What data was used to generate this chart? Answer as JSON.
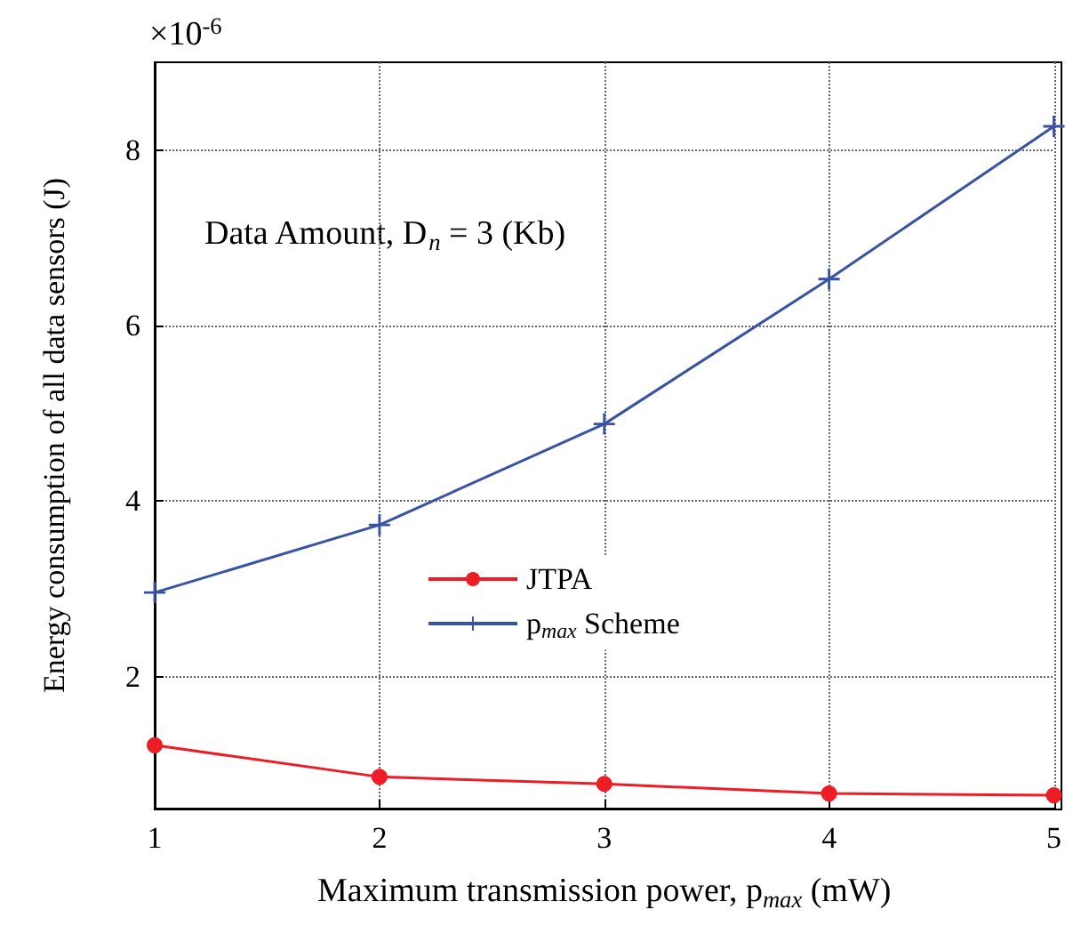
{
  "chart_data": {
    "type": "line",
    "xlabel": "Maximum transmission power, p$_{max}$ (mW)",
    "ylabel": "Energy consumption of all data sensors (J)",
    "x": [
      1,
      2,
      3,
      4,
      5
    ],
    "series": [
      {
        "name": "JTPA",
        "color": "#ee1c25",
        "marker": "circle",
        "values": [
          1.22,
          0.86,
          0.78,
          0.67,
          0.65
        ]
      },
      {
        "name": "p$_{max}$ Scheme",
        "color": "#3953a4",
        "marker": "cross",
        "values": [
          2.96,
          3.73,
          4.88,
          6.53,
          8.27
        ]
      }
    ],
    "xlim": [
      1,
      5
    ],
    "xticks": [
      1,
      2,
      3,
      4,
      5
    ],
    "ylim": [
      0.5,
      9
    ],
    "yticks": [
      2,
      4,
      6,
      8
    ],
    "annotations": [
      "×10$^{-6}$",
      "Data Amount, D$_{n}$ = 3 (Kb)"
    ],
    "grid": true,
    "legend": "center",
    "line_style": "solid"
  }
}
